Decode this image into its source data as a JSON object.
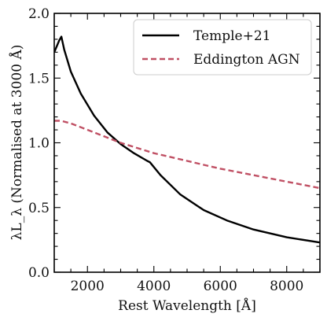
{
  "chart_data": {
    "type": "line",
    "xlabel": "Rest Wavelength [Å]",
    "ylabel": "λL_λ (Normalised at 3000 Å)",
    "xlim": [
      1000,
      9000
    ],
    "ylim": [
      0.0,
      2.0
    ],
    "xticks": [
      2000,
      4000,
      6000,
      8000
    ],
    "yticks": [
      0.0,
      0.5,
      1.0,
      1.5,
      2.0
    ],
    "xtick_labels": [
      "2000",
      "4000",
      "6000",
      "8000"
    ],
    "ytick_labels": [
      "0.0",
      "0.5",
      "1.0",
      "1.5",
      "2.0"
    ],
    "grid": false,
    "legend_position": "top-right",
    "series": [
      {
        "name": "Temple+21",
        "color": "#000000",
        "dash": "solid",
        "x": [
          1000,
          1150,
          1215,
          1300,
          1500,
          1800,
          2200,
          2600,
          3000,
          3400,
          3800,
          3880,
          4200,
          4800,
          5500,
          6200,
          7000,
          8000,
          9000
        ],
        "y": [
          1.7,
          1.79,
          1.82,
          1.72,
          1.55,
          1.38,
          1.21,
          1.08,
          0.99,
          0.92,
          0.86,
          0.85,
          0.75,
          0.6,
          0.48,
          0.4,
          0.33,
          0.27,
          0.23
        ]
      },
      {
        "name": "Eddington AGN",
        "color": "#c05064",
        "dash": "dashed",
        "x": [
          1000,
          1200,
          1500,
          2000,
          2500,
          3000,
          3500,
          4000,
          4500,
          5000,
          5500,
          6000,
          7000,
          8000,
          9000
        ],
        "y": [
          1.17,
          1.17,
          1.15,
          1.1,
          1.05,
          1.0,
          0.96,
          0.92,
          0.89,
          0.86,
          0.83,
          0.8,
          0.75,
          0.7,
          0.65
        ]
      }
    ]
  }
}
